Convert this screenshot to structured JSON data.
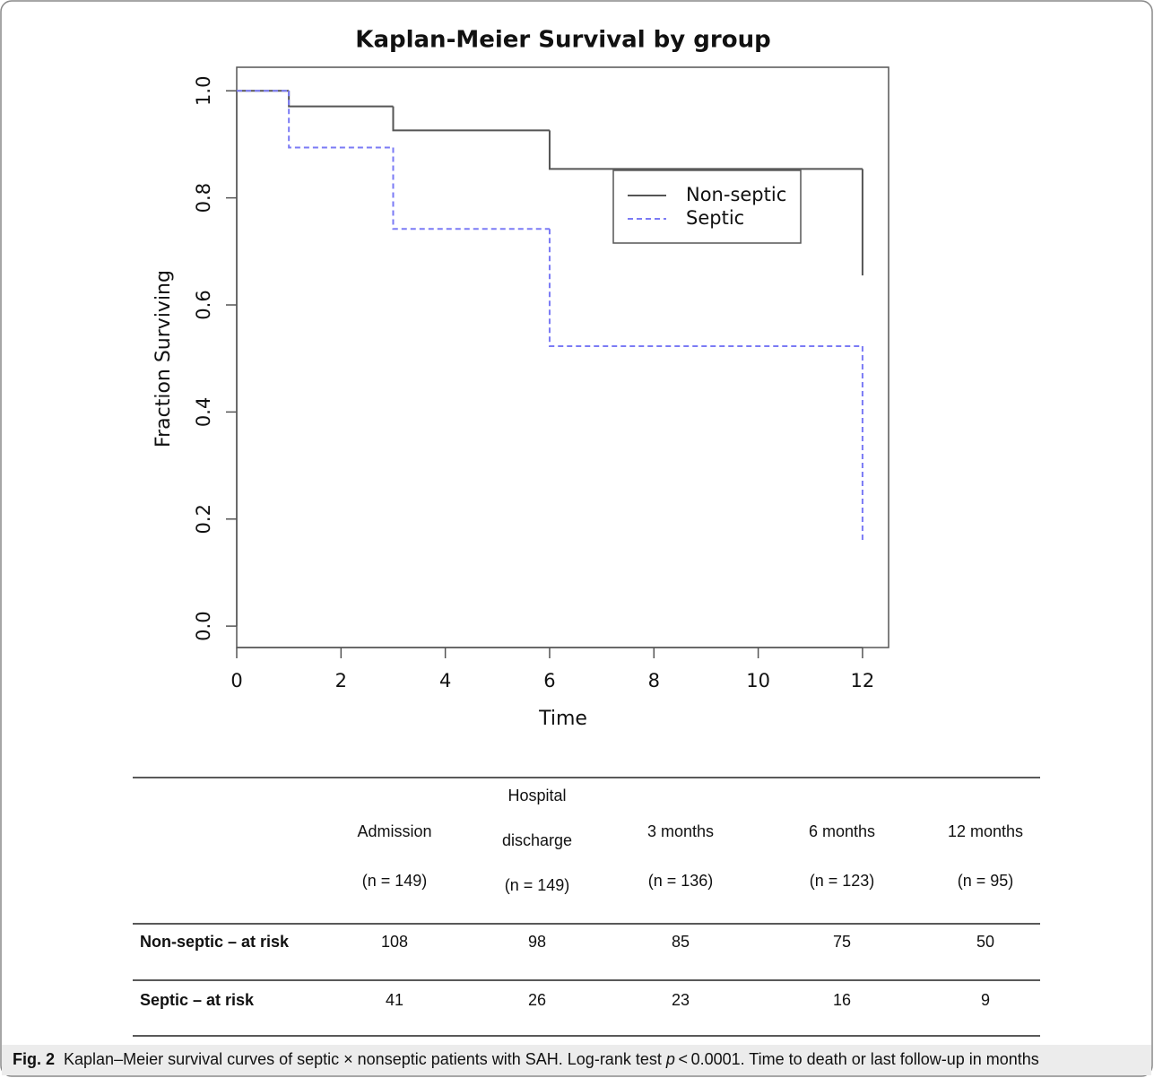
{
  "chart_data": {
    "type": "step",
    "title": "Kaplan-Meier Survival by group",
    "x_label": "Time",
    "y_label": "Fraction Surviving",
    "xlim": [
      0,
      12.5
    ],
    "ylim": [
      -0.04,
      1.044
    ],
    "xticks": [
      0,
      2,
      4,
      6,
      8,
      10,
      12
    ],
    "yticks": [
      {
        "value": 0,
        "label": "0.0"
      },
      0.2,
      0.4,
      0.6,
      0.8,
      {
        "value": 1,
        "label": "1.0"
      }
    ],
    "legend": "right",
    "series": [
      {
        "name": "Non-septic",
        "color": "#555555",
        "dash": false,
        "x": [
          0,
          1,
          3,
          6,
          12
        ],
        "values": [
          1,
          0.971,
          0.926,
          0.854,
          0.655
        ]
      },
      {
        "name": "Septic",
        "color": "#7b7bf5",
        "dash": true,
        "x": [
          0,
          1,
          3,
          6,
          12
        ],
        "values": [
          1,
          0.894,
          0.742,
          0.523,
          0.161
        ]
      }
    ]
  },
  "table": {
    "columns": [
      [
        "Admission",
        "(n = 149)"
      ],
      [
        "Hospital",
        "discharge",
        "(n = 149)"
      ],
      [
        "3 months",
        "(n = 136)"
      ],
      [
        "6 months",
        "(n = 123)"
      ],
      [
        "12 months",
        "(n = 95)"
      ]
    ],
    "rows": [
      {
        "label": "Non-septic – at risk",
        "cells": [
          "108",
          "98",
          "85",
          "75",
          "50"
        ]
      },
      {
        "label": "Septic – at risk",
        "cells": [
          "41",
          "26",
          "23",
          "16",
          "9"
        ]
      }
    ]
  },
  "caption": {
    "label": "Fig. 2",
    "text_before": "Kaplan–Meier survival curves of septic × nonseptic patients with SAH. Log-rank test ",
    "italic": "p",
    "text_after": " < 0.0001. Time to death or last follow-up in months"
  }
}
